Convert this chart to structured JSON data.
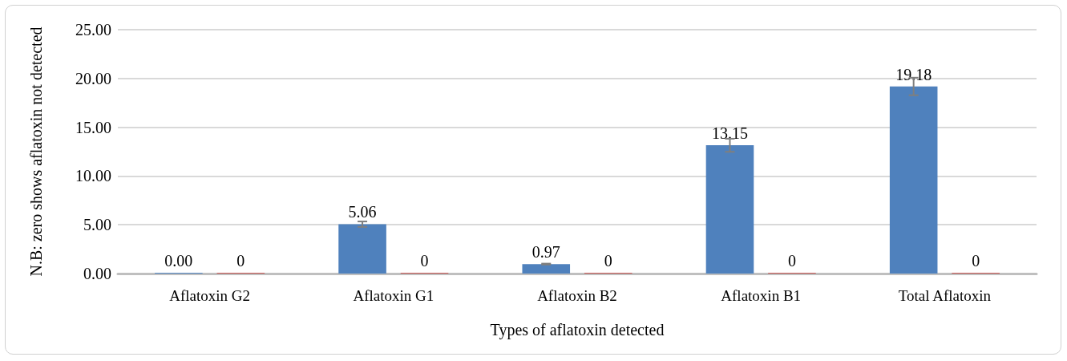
{
  "chart_data": {
    "type": "bar",
    "xlabel": "Types of aflatoxin detected",
    "ylabel": "N.B: zero shows aflatoxin not detected",
    "categories": [
      "Aflatoxin G2",
      "Aflatoxin G1",
      "Aflatoxin B2",
      "Aflatoxin B1",
      "Total Aflatoxin"
    ],
    "series": [
      {
        "color": "#4f81bd",
        "values": [
          0,
          5.06,
          0.97,
          13.15,
          19.18
        ],
        "errors": [
          null,
          0.28,
          0.05,
          0.67,
          0.9
        ],
        "value_labels": [
          "0.00",
          "5.06",
          "0.97",
          "13.15",
          "19.18"
        ]
      },
      {
        "color": "#c0504d",
        "values": [
          0,
          0,
          0,
          0,
          0
        ],
        "value_labels": [
          "0",
          "0",
          "0",
          "0",
          "0"
        ]
      }
    ],
    "ylim": [
      0,
      25
    ],
    "yticks": [
      {
        "value": 0,
        "label": "0.00"
      },
      {
        "value": 5,
        "label": "5.00"
      },
      {
        "value": 10,
        "label": "10.00"
      },
      {
        "value": 15,
        "label": "15.00"
      },
      {
        "value": 20,
        "label": "20.00"
      },
      {
        "value": 25,
        "label": "25.00"
      }
    ],
    "grid": "y"
  }
}
